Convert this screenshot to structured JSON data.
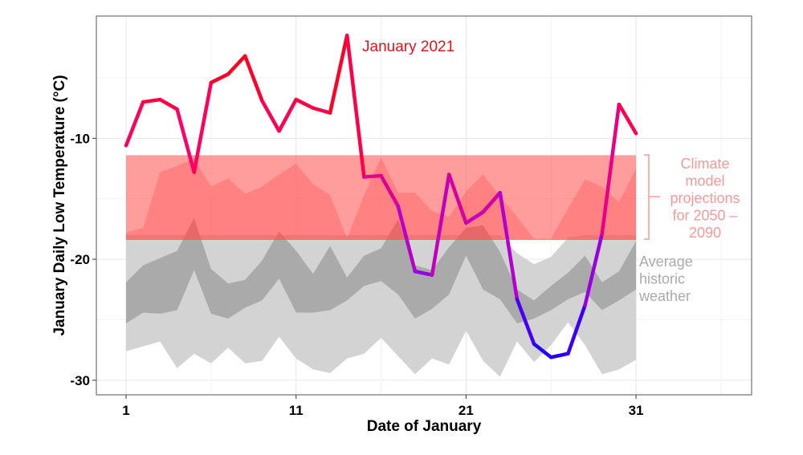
{
  "chart_data": {
    "type": "line",
    "title": "",
    "xlabel": "Date of January",
    "ylabel": "January Daily Low Temperature (°C)",
    "xlim": [
      -0.75,
      37.8
    ],
    "ylim": [
      -31.2,
      0.1
    ],
    "x_ticks": [
      1,
      11,
      21,
      31
    ],
    "x_tick_labels": [
      "1",
      "11",
      "21",
      "31"
    ],
    "y_ticks": [
      -10,
      -20,
      -30
    ],
    "y_tick_labels": [
      "-10",
      "-20",
      "-30"
    ],
    "grid": true,
    "x": [
      1,
      2,
      3,
      4,
      5,
      6,
      7,
      8,
      9,
      10,
      11,
      12,
      13,
      14,
      15,
      16,
      17,
      18,
      19,
      20,
      21,
      22,
      23,
      24,
      25,
      26,
      27,
      28,
      29,
      30,
      31
    ],
    "series": [
      {
        "name": "January 2021",
        "type": "line",
        "values": [
          -10.6,
          -7.0,
          -6.8,
          -7.6,
          -12.8,
          -5.4,
          -4.7,
          -3.2,
          -6.9,
          -9.4,
          -6.8,
          -7.5,
          -7.9,
          -1.5,
          -13.2,
          -13.1,
          -15.6,
          -21.0,
          -21.3,
          -13.0,
          -17.0,
          -16.1,
          -14.5,
          -23.3,
          -27.0,
          -28.1,
          -27.8,
          -23.8,
          -17.9,
          -7.2,
          -9.6
        ]
      },
      {
        "name": "Climate model projections for 2050 – 2090",
        "type": "band",
        "upper": -11.4,
        "lower": -18.4,
        "inner_upper": [
          -17.8,
          -17.4,
          -12.8,
          -12.3,
          -11.7,
          -14.0,
          -13.3,
          -14.6,
          -14.0,
          -13.0,
          -12.1,
          -13.8,
          -14.7,
          -18.3,
          -14.7,
          -11.6,
          -14.5,
          -14.5,
          -16.0,
          -16.5,
          -14.4,
          -13.0,
          -14.8,
          -16.5,
          -18.3,
          -18.3,
          -15.8,
          -13.4,
          -14.0,
          -15.3,
          -12.5
        ]
      },
      {
        "name": "Average historic weather",
        "type": "band",
        "outer_upper": [
          -18,
          -18,
          -18,
          -18,
          -18,
          -18,
          -18,
          -18,
          -18,
          -18,
          -18,
          -18,
          -18,
          -18,
          -18,
          -18,
          -18,
          -18,
          -18,
          -18,
          -18,
          -18,
          -18,
          -19.5,
          -20.4,
          -19.8,
          -18.2,
          -18,
          -18,
          -18,
          -18
        ],
        "outer_lower": [
          -27.6,
          -27.2,
          -26.8,
          -29.0,
          -27.8,
          -28.6,
          -27.3,
          -28.6,
          -28.4,
          -26.4,
          -28.2,
          -29.1,
          -29.4,
          -28.2,
          -27.8,
          -26.5,
          -28.0,
          -29.5,
          -28.2,
          -28.7,
          -25.9,
          -28.4,
          -29.7,
          -26.8,
          -28.5,
          -27.1,
          -25.2,
          -27.1,
          -29.5,
          -29.1,
          -28.3
        ],
        "inner_upper": [
          -21.9,
          -20.5,
          -19.9,
          -19.3,
          -16.6,
          -20.8,
          -22.0,
          -21.7,
          -20.1,
          -17.7,
          -19.3,
          -21.2,
          -18.9,
          -21.5,
          -19.7,
          -19.1,
          -16.7,
          -20.5,
          -20.9,
          -19.0,
          -17.4,
          -17.2,
          -19.4,
          -22.5,
          -23.4,
          -22.2,
          -21.1,
          -19.7,
          -21.9,
          -21.0,
          -18.5
        ],
        "inner_lower": [
          -25.3,
          -24.4,
          -24.5,
          -24.2,
          -20.9,
          -24.5,
          -24.9,
          -24.0,
          -23.4,
          -21.6,
          -24.4,
          -24.4,
          -24.2,
          -23.4,
          -22.2,
          -21.8,
          -22.9,
          -24.9,
          -24.1,
          -22.9,
          -19.7,
          -22.5,
          -23.3,
          -25.3,
          -24.9,
          -24.2,
          -23.3,
          -22.7,
          -24.2,
          -23.4,
          -22.5
        ]
      }
    ],
    "annotations": {
      "line_label": "January 2021",
      "projection_label": [
        "Climate",
        "model",
        "projections",
        "for 2050 –",
        "2090"
      ],
      "historic_label": [
        "Average",
        "historic",
        "weather"
      ]
    },
    "colors": {
      "warm": "#ff0000",
      "mid": "#ff0066",
      "cold": "#2200ff",
      "projection_band": "#ff4d4d",
      "projection_text": "#f59a9a",
      "historic_band": "#d3d3d3",
      "historic_inner": "#aaaaaa",
      "historic_text": "#aaaaaa",
      "line_label_text": "#e8101a"
    }
  }
}
